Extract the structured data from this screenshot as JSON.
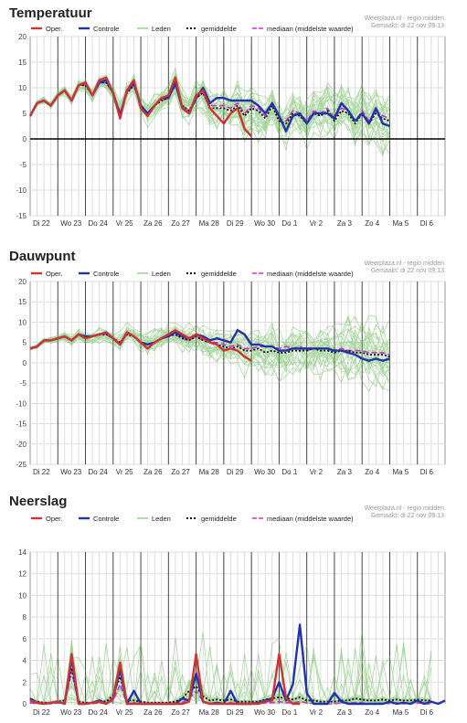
{
  "source": {
    "site": "Weerplaza.nl - regio midden",
    "made": "Gemaakt: di 22 nov 09:13"
  },
  "legend": {
    "oper": "Oper.",
    "controle": "Controle",
    "leden": "Leden",
    "gemiddelde": "gemiddelde",
    "mediaan": "mediaan (middelste waarde)"
  },
  "colors": {
    "oper": "#cc3333",
    "controle": "#2233aa",
    "leden": "#66bb55",
    "gemiddelde": "#111111",
    "mediaan": "#cc33cc",
    "grid": "#dddddd",
    "daylines": "#444444"
  },
  "days": [
    "Di 22",
    "Wo 23",
    "Do 24",
    "Vr 25",
    "Za 26",
    "Zo 27",
    "Ma 28",
    "Di 29",
    "Wo 30",
    "Do 1",
    "Vr 2",
    "Za 3",
    "Zo 4",
    "Ma 5",
    "Di 6"
  ],
  "chart_data": [
    {
      "type": "line",
      "title": "Temperatuur",
      "xlabel": "",
      "ylabel": "",
      "x_step_hours": 6,
      "ylim": [
        -15,
        20
      ],
      "yticks": [
        -15,
        -10,
        -5,
        0,
        5,
        10,
        15,
        20
      ],
      "zero_line": true,
      "series": [
        {
          "key": "oper",
          "name": "Oper.",
          "values": [
            4.5,
            7,
            7.5,
            6.5,
            8.5,
            9.5,
            7.5,
            10.5,
            11,
            8.5,
            11.5,
            12,
            9,
            4,
            9.5,
            11.5,
            6,
            4.5,
            6.5,
            8,
            8.5,
            12,
            6,
            5,
            8.5,
            9.5,
            6,
            4.5,
            3,
            5,
            6,
            2,
            0.5
          ]
        },
        {
          "key": "controle",
          "name": "Controle",
          "values": [
            4.5,
            7,
            7.5,
            6.5,
            8.5,
            9.5,
            7.5,
            10.5,
            11,
            8.5,
            11,
            11.5,
            9,
            4.5,
            9.5,
            11,
            6.5,
            5,
            6.5,
            8,
            8,
            11,
            6,
            5,
            8,
            10,
            7,
            8,
            8,
            7.5,
            7.5,
            7.5,
            7.5,
            6.5,
            5,
            7,
            4.5,
            1.5,
            4.5,
            5,
            3,
            5,
            5,
            5,
            4,
            7,
            5.5,
            3.5,
            5,
            3,
            6,
            3,
            2.5
          ]
        },
        {
          "key": "gemiddelde",
          "name": "gemiddelde",
          "values": [
            4.5,
            7,
            7.5,
            6.5,
            8.5,
            9.5,
            7.5,
            10.5,
            10.5,
            8.5,
            11,
            11,
            9,
            5,
            9,
            10.5,
            6.5,
            5,
            6.5,
            7.5,
            8,
            10.5,
            6.5,
            5.5,
            8,
            9,
            6,
            6,
            6,
            5.5,
            6.5,
            4.5,
            6,
            5.5,
            4,
            6.5,
            3.5,
            3,
            5,
            4.5,
            3,
            5,
            4.5,
            5.5,
            3.5,
            5.5,
            5,
            3,
            5,
            3,
            5,
            4,
            3.5
          ]
        },
        {
          "key": "mediaan",
          "name": "mediaan (middelste waarde)",
          "values": [
            4.5,
            7,
            7.5,
            6.5,
            8.5,
            9.5,
            7.5,
            10.5,
            10.5,
            8.5,
            11,
            11,
            9,
            5,
            9,
            10.5,
            6.5,
            5,
            6.5,
            7.5,
            8,
            10.5,
            6.5,
            5.5,
            8,
            9,
            6.5,
            6.5,
            6.5,
            6,
            7,
            5,
            6.5,
            6,
            4.5,
            7,
            4,
            3.5,
            5.5,
            5,
            3.5,
            5.5,
            5,
            6,
            4,
            6,
            5.5,
            3.5,
            5.5,
            3.5,
            5.5,
            4.5,
            4
          ]
        }
      ]
    },
    {
      "type": "line",
      "title": "Dauwpunt",
      "xlabel": "",
      "ylabel": "",
      "x_step_hours": 6,
      "ylim": [
        -25,
        20
      ],
      "yticks": [
        -25,
        -20,
        -15,
        -10,
        -5,
        0,
        5,
        10,
        15,
        20
      ],
      "zero_line": false,
      "series": [
        {
          "key": "oper",
          "name": "Oper.",
          "values": [
            3.5,
            4,
            5.5,
            5.5,
            6,
            6.5,
            5.5,
            7,
            6,
            6.5,
            7,
            7.5,
            6,
            4.5,
            7.5,
            6.5,
            5,
            3.5,
            5,
            6,
            7,
            8,
            7,
            6,
            7,
            6,
            5,
            4.5,
            3,
            3.5,
            3,
            1.5,
            0.5
          ]
        },
        {
          "key": "controle",
          "name": "Controle",
          "values": [
            3.5,
            4,
            5.5,
            5.5,
            6,
            6.5,
            5.5,
            7,
            6.5,
            6.5,
            7,
            7.5,
            6,
            4.5,
            7.5,
            6.5,
            5,
            4.5,
            5,
            6,
            6.5,
            7.5,
            6.5,
            6,
            7,
            6.5,
            5.5,
            6,
            5.5,
            5,
            8,
            7,
            4.5,
            4.5,
            4,
            4,
            3,
            3,
            3.5,
            3.5,
            3.5,
            3.5,
            3.5,
            3.5,
            3,
            3,
            2.5,
            2,
            1,
            0.5,
            1,
            0.5,
            1
          ]
        },
        {
          "key": "gemiddelde",
          "name": "gemiddelde",
          "values": [
            3.5,
            4,
            5.5,
            5.5,
            6,
            6.5,
            5.5,
            7,
            6,
            6.5,
            7,
            7,
            6,
            5,
            7,
            6.5,
            5,
            4.5,
            5,
            6,
            6.5,
            7,
            6,
            5.5,
            6.5,
            5.5,
            5,
            4.5,
            4,
            3.5,
            4,
            3,
            3,
            3.5,
            2.5,
            3,
            2.5,
            2.5,
            3,
            3,
            3,
            3.5,
            3,
            3,
            2.5,
            3,
            3,
            2.5,
            2.5,
            2,
            2,
            2,
            1.5
          ]
        },
        {
          "key": "mediaan",
          "name": "mediaan (middelste waarde)",
          "values": [
            3.5,
            4,
            5.5,
            5.5,
            6,
            6.5,
            5.5,
            7,
            6,
            6.5,
            7,
            7,
            6,
            5,
            7,
            6.5,
            5,
            4.5,
            5,
            6,
            6.5,
            7,
            6,
            5.5,
            6.5,
            5.5,
            5,
            5,
            4.5,
            4,
            4.5,
            3.5,
            3.5,
            4,
            4,
            4,
            3.5,
            4,
            3.5,
            4,
            3,
            3.5,
            3.5,
            3.5,
            3,
            3.5,
            3,
            3,
            3,
            2.5,
            2.5,
            2.5,
            2
          ]
        }
      ]
    },
    {
      "type": "line",
      "title": "Neerslag",
      "xlabel": "",
      "ylabel": "",
      "x_step_hours": 6,
      "ylim": [
        0,
        14
      ],
      "yticks": [
        0,
        2,
        4,
        6,
        8,
        10,
        12,
        14
      ],
      "zero_line": false,
      "series": [
        {
          "key": "oper",
          "name": "Oper.",
          "values": [
            0.3,
            0.1,
            0,
            0.1,
            0.2,
            0,
            4.6,
            0,
            0,
            0.1,
            0.2,
            0,
            0.5,
            3.8,
            0,
            0,
            0,
            0,
            0,
            0,
            0,
            0,
            0,
            0.2,
            4.6,
            0.2,
            0,
            0,
            0,
            0,
            0,
            0,
            0,
            0,
            0.2,
            0.3,
            4.6,
            0.5,
            0,
            0
          ]
        },
        {
          "key": "controle",
          "name": "Controle",
          "values": [
            0.5,
            0.1,
            0,
            0.1,
            0.2,
            0,
            4.2,
            0,
            0,
            0.1,
            0.3,
            0,
            0.5,
            3.2,
            0,
            1.2,
            0,
            0,
            0,
            0,
            0,
            0,
            0.5,
            0.3,
            2.8,
            0.2,
            0,
            0.1,
            0,
            1.2,
            0,
            0,
            0,
            0.1,
            0.3,
            0.5,
            2,
            0.3,
            1.8,
            7.3,
            1,
            0,
            0,
            0,
            1,
            0.2,
            0,
            0,
            0,
            0,
            0,
            0,
            0.2,
            0,
            0.1,
            0,
            0.3,
            0,
            0.2,
            0,
            0.3
          ]
        },
        {
          "key": "gemiddelde",
          "name": "gemiddelde",
          "values": [
            0.3,
            0.2,
            0.1,
            0.1,
            0.2,
            0.3,
            3.3,
            0.2,
            0.1,
            0.1,
            0.3,
            0.2,
            0.8,
            2.5,
            0.3,
            0.3,
            0.2,
            0.1,
            0.1,
            0.1,
            0.1,
            0.2,
            0.5,
            1.2,
            1.6,
            0.7,
            0.3,
            0.4,
            0.3,
            0.4,
            0.2,
            0.2,
            0.2,
            0.2,
            0.4,
            0.5,
            0.6,
            0.5,
            0.4,
            0.6,
            0.3,
            0.3,
            0.2,
            0.2,
            0.2,
            0.3,
            0.3,
            0.5,
            0.4,
            0.3,
            0.3,
            0.4,
            0.3,
            0.4,
            0.3,
            0.3,
            0.4,
            0.3,
            0.3
          ]
        },
        {
          "key": "mediaan",
          "name": "mediaan (middelste waarde)",
          "values": [
            0.1,
            0,
            0,
            0,
            0.1,
            0,
            3,
            0,
            0,
            0,
            0.1,
            0,
            0.3,
            1.8,
            0,
            0.1,
            0,
            0,
            0,
            0,
            0,
            0,
            0.1,
            0.5,
            1.2,
            0.2,
            0,
            0.1,
            0,
            0.1,
            0,
            0,
            0,
            0,
            0.1,
            0.1,
            0.2,
            0.1,
            0.1,
            0.2,
            0.1,
            0,
            0,
            0,
            0,
            0.1,
            0.1,
            0.1,
            0.1,
            0,
            0,
            0.1,
            0,
            0.1,
            0,
            0,
            0.1,
            0,
            0
          ]
        }
      ]
    }
  ]
}
